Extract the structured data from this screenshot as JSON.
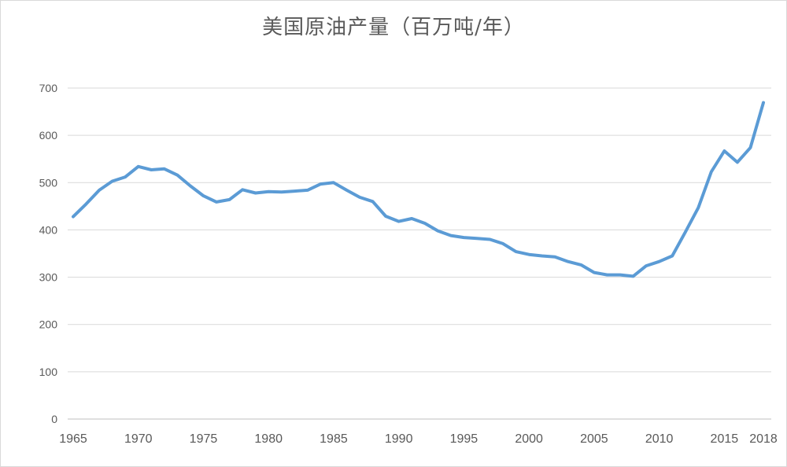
{
  "chart_data": {
    "type": "line",
    "title": "美国原油产量（百万吨/年）",
    "xlabel": "",
    "ylabel": "",
    "ylim": [
      0,
      700
    ],
    "xlim": [
      1965,
      2018
    ],
    "yticks": [
      0,
      100,
      200,
      300,
      400,
      500,
      600,
      700
    ],
    "xticks": [
      "1965",
      "1970",
      "1975",
      "1980",
      "1985",
      "1990",
      "1995",
      "2000",
      "2005",
      "2010",
      "2015",
      "2018"
    ],
    "grid": "horizontal",
    "legend": "none",
    "line_color": "#5b9bd5",
    "series": [
      {
        "x": [
          1965,
          1966,
          1967,
          1968,
          1969,
          1970,
          1971,
          1972,
          1973,
          1974,
          1975,
          1976,
          1977,
          1978,
          1979,
          1980,
          1981,
          1982,
          1983,
          1984,
          1985,
          1986,
          1987,
          1988,
          1989,
          1990,
          1991,
          1992,
          1993,
          1994,
          1995,
          1996,
          1997,
          1998,
          1999,
          2000,
          2001,
          2002,
          2003,
          2004,
          2005,
          2006,
          2007,
          2008,
          2009,
          2010,
          2011,
          2012,
          2013,
          2014,
          2015,
          2016,
          2017,
          2018
        ],
        "values": [
          428,
          455,
          484,
          503,
          512,
          534,
          527,
          529,
          516,
          493,
          472,
          459,
          464,
          485,
          478,
          481,
          480,
          482,
          484,
          497,
          500,
          484,
          469,
          460,
          429,
          418,
          424,
          414,
          398,
          388,
          384,
          382,
          380,
          371,
          354,
          348,
          345,
          343,
          333,
          326,
          310,
          305,
          305,
          302,
          324,
          333,
          345,
          395,
          447,
          523,
          567,
          543,
          574,
          669
        ]
      }
    ]
  }
}
